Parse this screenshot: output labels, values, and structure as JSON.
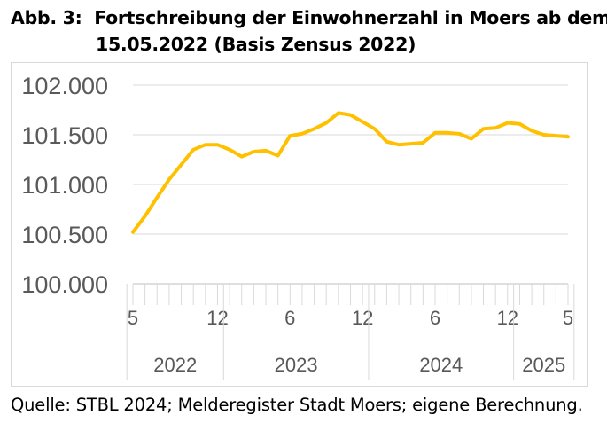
{
  "title": {
    "prefix": "Abb. 3:",
    "line1": "Fortschreibung der Einwohnerzahl in Moers ab dem",
    "line2": "15.05.2022 (Basis Zensus 2022)"
  },
  "source": "Quelle: STBL 2024; Melderegister Stadt Moers; eigene Berechnung.",
  "line_color": "#FFC000",
  "chart_data": {
    "type": "line",
    "title": "Fortschreibung der Einwohnerzahl in Moers ab dem 15.05.2022 (Basis Zensus 2022)",
    "ylim": [
      100000,
      102000
    ],
    "y_ticks": [
      "100.000",
      "100.500",
      "101.000",
      "101.500",
      "102.000"
    ],
    "y_tick_values": [
      100000,
      100500,
      101000,
      101500,
      102000
    ],
    "x_tick_labels": [
      {
        "label": "5",
        "index": 0
      },
      {
        "label": "12",
        "index": 7
      },
      {
        "label": "6",
        "index": 13
      },
      {
        "label": "12",
        "index": 19
      },
      {
        "label": "6",
        "index": 25
      },
      {
        "label": "12",
        "index": 31
      },
      {
        "label": "5",
        "index": 36
      }
    ],
    "years": [
      {
        "label": "2022",
        "start": 0,
        "end": 7
      },
      {
        "label": "2023",
        "start": 8,
        "end": 19
      },
      {
        "label": "2024",
        "start": 20,
        "end": 31
      },
      {
        "label": "2025",
        "start": 32,
        "end": 36
      }
    ],
    "grid": true,
    "series": [
      {
        "values": [
          100520,
          100680,
          100870,
          101050,
          101200,
          101350,
          101400,
          101400,
          101350,
          101280,
          101330,
          101340,
          101290,
          101490,
          101510,
          101560,
          101620,
          101720,
          101700,
          101630,
          101560,
          101430,
          101400,
          101410,
          101420,
          101520,
          101520,
          101510,
          101460,
          101560,
          101570,
          101620,
          101610,
          101540,
          101500,
          101490,
          101480
        ]
      }
    ]
  }
}
